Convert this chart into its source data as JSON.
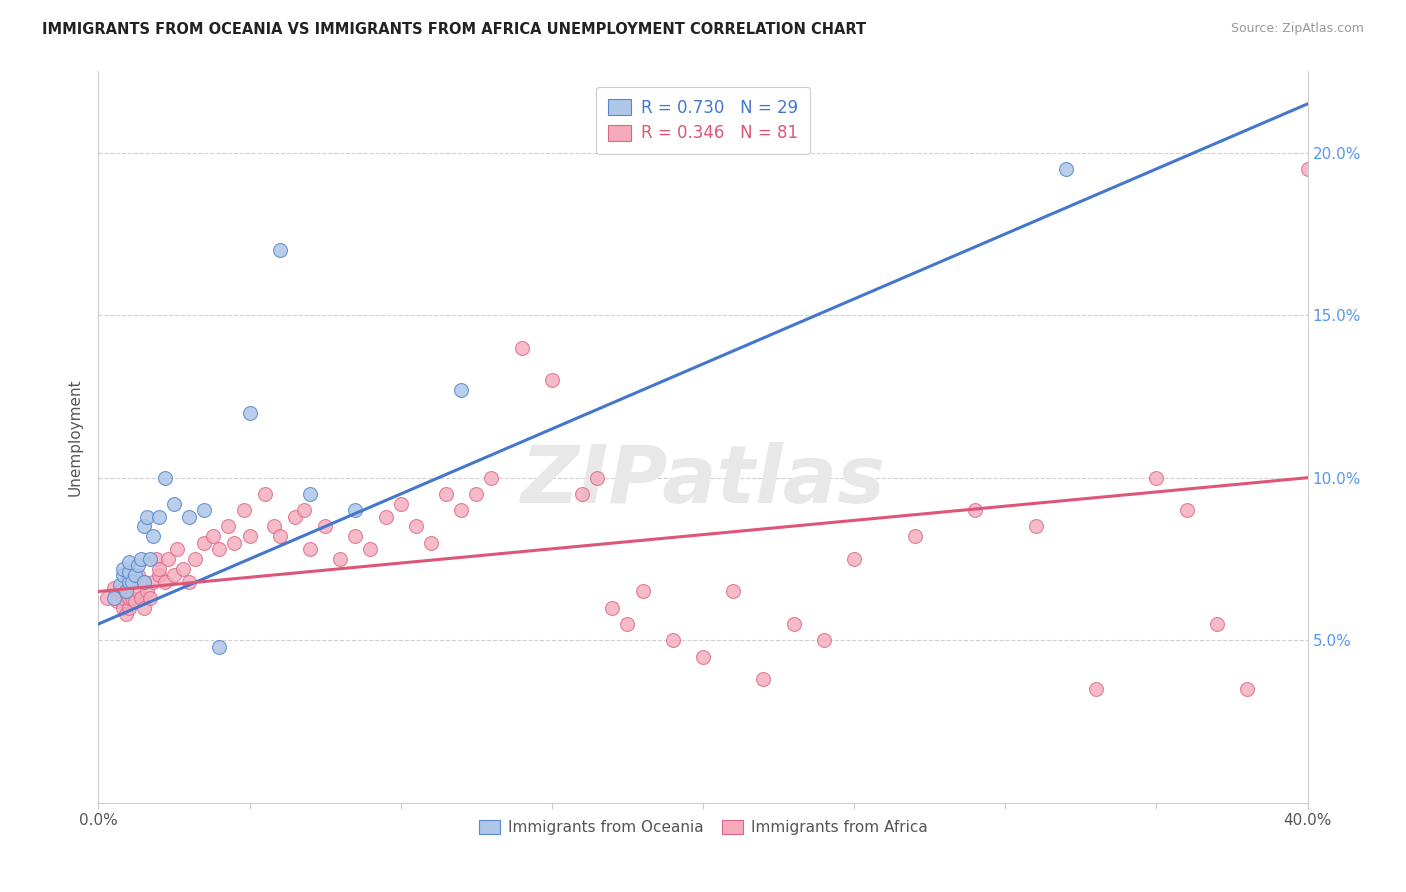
{
  "title": "IMMIGRANTS FROM OCEANIA VS IMMIGRANTS FROM AFRICA UNEMPLOYMENT CORRELATION CHART",
  "source": "Source: ZipAtlas.com",
  "ylabel": "Unemployment",
  "x_min": 0.0,
  "x_max": 0.4,
  "y_min": 0.0,
  "y_max": 0.225,
  "x_ticks": [
    0.0,
    0.05,
    0.1,
    0.15,
    0.2,
    0.25,
    0.3,
    0.35,
    0.4
  ],
  "x_tick_labels": [
    "0.0%",
    "",
    "",
    "",
    "",
    "",
    "",
    "",
    "40.0%"
  ],
  "y_ticks": [
    0.05,
    0.1,
    0.15,
    0.2
  ],
  "y_tick_labels": [
    "5.0%",
    "10.0%",
    "15.0%",
    "20.0%"
  ],
  "legend_R_blue": "0.730",
  "legend_N_blue": "29",
  "legend_R_pink": "0.346",
  "legend_N_pink": "81",
  "legend_label_blue": "Immigrants from Oceania",
  "legend_label_pink": "Immigrants from Africa",
  "blue_fill": "#AEC6E8",
  "pink_fill": "#F4AABB",
  "blue_edge": "#5588CC",
  "pink_edge": "#DD6688",
  "line_blue": "#4477CC",
  "line_pink": "#DD5577",
  "grid_color": "#cccccc",
  "watermark": "ZIPatlas",
  "oceania_x": [
    0.005,
    0.007,
    0.008,
    0.008,
    0.009,
    0.01,
    0.01,
    0.01,
    0.011,
    0.012,
    0.013,
    0.014,
    0.015,
    0.015,
    0.016,
    0.017,
    0.018,
    0.02,
    0.022,
    0.025,
    0.03,
    0.035,
    0.04,
    0.05,
    0.06,
    0.07,
    0.085,
    0.12,
    0.32
  ],
  "oceania_y": [
    0.063,
    0.067,
    0.07,
    0.072,
    0.065,
    0.068,
    0.071,
    0.074,
    0.068,
    0.07,
    0.073,
    0.075,
    0.068,
    0.085,
    0.088,
    0.075,
    0.082,
    0.088,
    0.1,
    0.092,
    0.088,
    0.09,
    0.048,
    0.12,
    0.17,
    0.095,
    0.09,
    0.127,
    0.195
  ],
  "africa_x": [
    0.003,
    0.005,
    0.006,
    0.007,
    0.008,
    0.008,
    0.009,
    0.009,
    0.01,
    0.01,
    0.01,
    0.011,
    0.011,
    0.012,
    0.012,
    0.013,
    0.013,
    0.014,
    0.015,
    0.015,
    0.016,
    0.017,
    0.018,
    0.019,
    0.02,
    0.02,
    0.022,
    0.023,
    0.025,
    0.026,
    0.028,
    0.03,
    0.032,
    0.035,
    0.038,
    0.04,
    0.043,
    0.045,
    0.048,
    0.05,
    0.055,
    0.058,
    0.06,
    0.065,
    0.068,
    0.07,
    0.075,
    0.08,
    0.085,
    0.09,
    0.095,
    0.1,
    0.105,
    0.11,
    0.115,
    0.12,
    0.125,
    0.13,
    0.14,
    0.15,
    0.16,
    0.165,
    0.17,
    0.175,
    0.18,
    0.19,
    0.2,
    0.21,
    0.22,
    0.23,
    0.24,
    0.25,
    0.27,
    0.29,
    0.31,
    0.33,
    0.35,
    0.36,
    0.37,
    0.38,
    0.4
  ],
  "africa_y": [
    0.063,
    0.066,
    0.062,
    0.065,
    0.06,
    0.063,
    0.058,
    0.068,
    0.06,
    0.063,
    0.068,
    0.063,
    0.07,
    0.062,
    0.068,
    0.065,
    0.07,
    0.063,
    0.06,
    0.068,
    0.065,
    0.063,
    0.068,
    0.075,
    0.07,
    0.072,
    0.068,
    0.075,
    0.07,
    0.078,
    0.072,
    0.068,
    0.075,
    0.08,
    0.082,
    0.078,
    0.085,
    0.08,
    0.09,
    0.082,
    0.095,
    0.085,
    0.082,
    0.088,
    0.09,
    0.078,
    0.085,
    0.075,
    0.082,
    0.078,
    0.088,
    0.092,
    0.085,
    0.08,
    0.095,
    0.09,
    0.095,
    0.1,
    0.14,
    0.13,
    0.095,
    0.1,
    0.06,
    0.055,
    0.065,
    0.05,
    0.045,
    0.065,
    0.038,
    0.055,
    0.05,
    0.075,
    0.082,
    0.09,
    0.085,
    0.035,
    0.1,
    0.09,
    0.055,
    0.035,
    0.195
  ]
}
